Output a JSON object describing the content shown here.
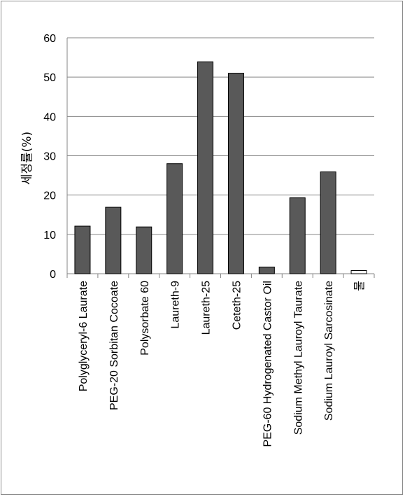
{
  "chart_data": {
    "type": "bar",
    "ylabel": "세정률(%)",
    "xlabel": "",
    "ylim": [
      0,
      60
    ],
    "yticks": [
      0,
      10,
      20,
      30,
      40,
      50,
      60
    ],
    "grid": true,
    "categories": [
      "Polyglyceryl-6 Laurate",
      "PEG-20 Sorbitan Cocoate",
      "Polysorbate 60",
      "Laureth-9",
      "Laureth-25",
      "Ceteth-25",
      "PEG-60 Hydrogenated Castor Oil",
      "Sodium Methyl Lauroyl Taurate",
      "Sodium Lauroyl Sarcosinate",
      "물"
    ],
    "values": [
      12.1,
      16.9,
      11.9,
      28.0,
      53.9,
      51.0,
      1.7,
      19.3,
      25.9,
      0.8
    ],
    "bar_colors": [
      "#595959",
      "#595959",
      "#595959",
      "#595959",
      "#595959",
      "#595959",
      "#595959",
      "#595959",
      "#595959",
      "#ffffff"
    ]
  }
}
